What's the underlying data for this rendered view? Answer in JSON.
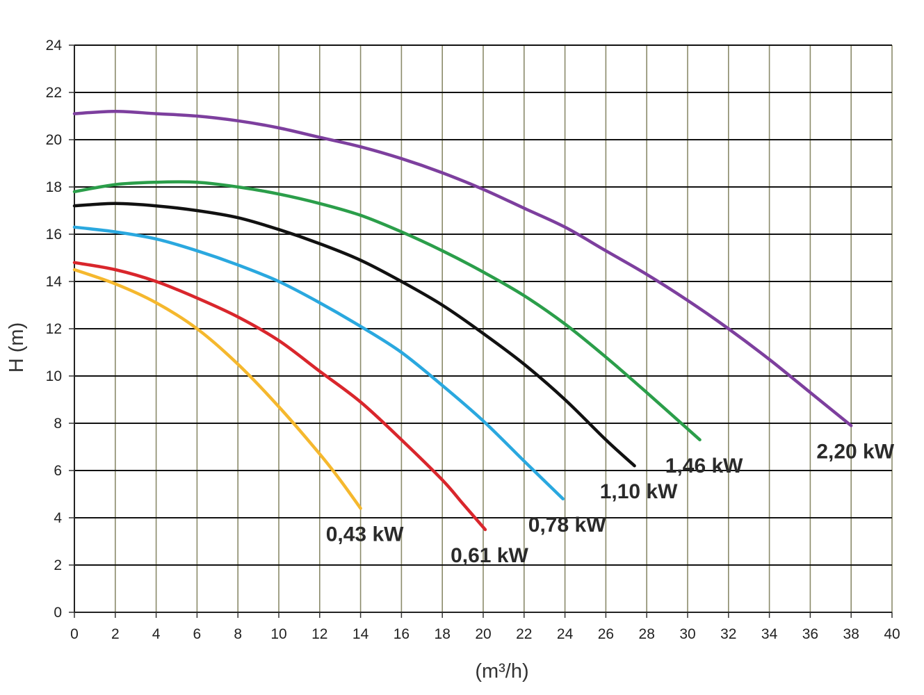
{
  "chart_data": {
    "type": "line",
    "title": "",
    "xlabel": "(m³/h)",
    "ylabel": "H (m)",
    "xlim": [
      0,
      40
    ],
    "ylim": [
      0,
      24
    ],
    "x_ticks": [
      0,
      2,
      4,
      6,
      8,
      10,
      12,
      14,
      16,
      18,
      20,
      22,
      24,
      26,
      28,
      30,
      32,
      34,
      36,
      38,
      40
    ],
    "y_ticks": [
      0,
      2,
      4,
      6,
      8,
      10,
      12,
      14,
      16,
      18,
      20,
      22,
      24
    ],
    "grid": true,
    "legend": "none",
    "series": [
      {
        "name": "0,43 kW",
        "color": "#f5b82e",
        "x": [
          0,
          2,
          4,
          6,
          8,
          10,
          12,
          13,
          14
        ],
        "y": [
          14.5,
          13.9,
          13.1,
          12.0,
          10.5,
          8.7,
          6.7,
          5.6,
          4.4
        ]
      },
      {
        "name": "0,61 kW",
        "color": "#d9262c",
        "x": [
          0,
          2,
          4,
          6,
          8,
          10,
          12,
          14,
          16,
          18,
          19,
          20.1
        ],
        "y": [
          14.8,
          14.5,
          14.0,
          13.3,
          12.5,
          11.5,
          10.2,
          8.9,
          7.3,
          5.6,
          4.6,
          3.5
        ]
      },
      {
        "name": "0,78 kW",
        "color": "#2aa8df",
        "x": [
          0,
          2,
          4,
          6,
          8,
          10,
          12,
          14,
          16,
          18,
          20,
          22,
          23.9
        ],
        "y": [
          16.3,
          16.1,
          15.8,
          15.3,
          14.7,
          14.0,
          13.1,
          12.1,
          11.0,
          9.6,
          8.1,
          6.4,
          4.8
        ]
      },
      {
        "name": "1,10 kW",
        "color": "#111111",
        "x": [
          0,
          2,
          4,
          6,
          8,
          10,
          12,
          14,
          16,
          18,
          20,
          22,
          24,
          26,
          27.4
        ],
        "y": [
          17.2,
          17.3,
          17.2,
          17.0,
          16.7,
          16.2,
          15.6,
          14.9,
          14.0,
          13.0,
          11.8,
          10.5,
          9.0,
          7.3,
          6.2
        ]
      },
      {
        "name": "1,46 kW",
        "color": "#2b9e4a",
        "x": [
          0,
          2,
          4,
          6,
          8,
          10,
          12,
          14,
          16,
          18,
          20,
          22,
          24,
          26,
          28,
          30.6
        ],
        "y": [
          17.8,
          18.1,
          18.2,
          18.2,
          18.0,
          17.7,
          17.3,
          16.8,
          16.1,
          15.3,
          14.4,
          13.4,
          12.2,
          10.8,
          9.3,
          7.3
        ]
      },
      {
        "name": "2,20 kW",
        "color": "#7d3f9e",
        "x": [
          0,
          2,
          4,
          6,
          8,
          10,
          12,
          14,
          16,
          18,
          20,
          22,
          24,
          26,
          28,
          30,
          32,
          34,
          36,
          38
        ],
        "y": [
          21.1,
          21.2,
          21.1,
          21.0,
          20.8,
          20.5,
          20.1,
          19.7,
          19.2,
          18.6,
          17.9,
          17.1,
          16.3,
          15.3,
          14.3,
          13.2,
          12.0,
          10.7,
          9.3,
          7.9
        ]
      }
    ]
  }
}
